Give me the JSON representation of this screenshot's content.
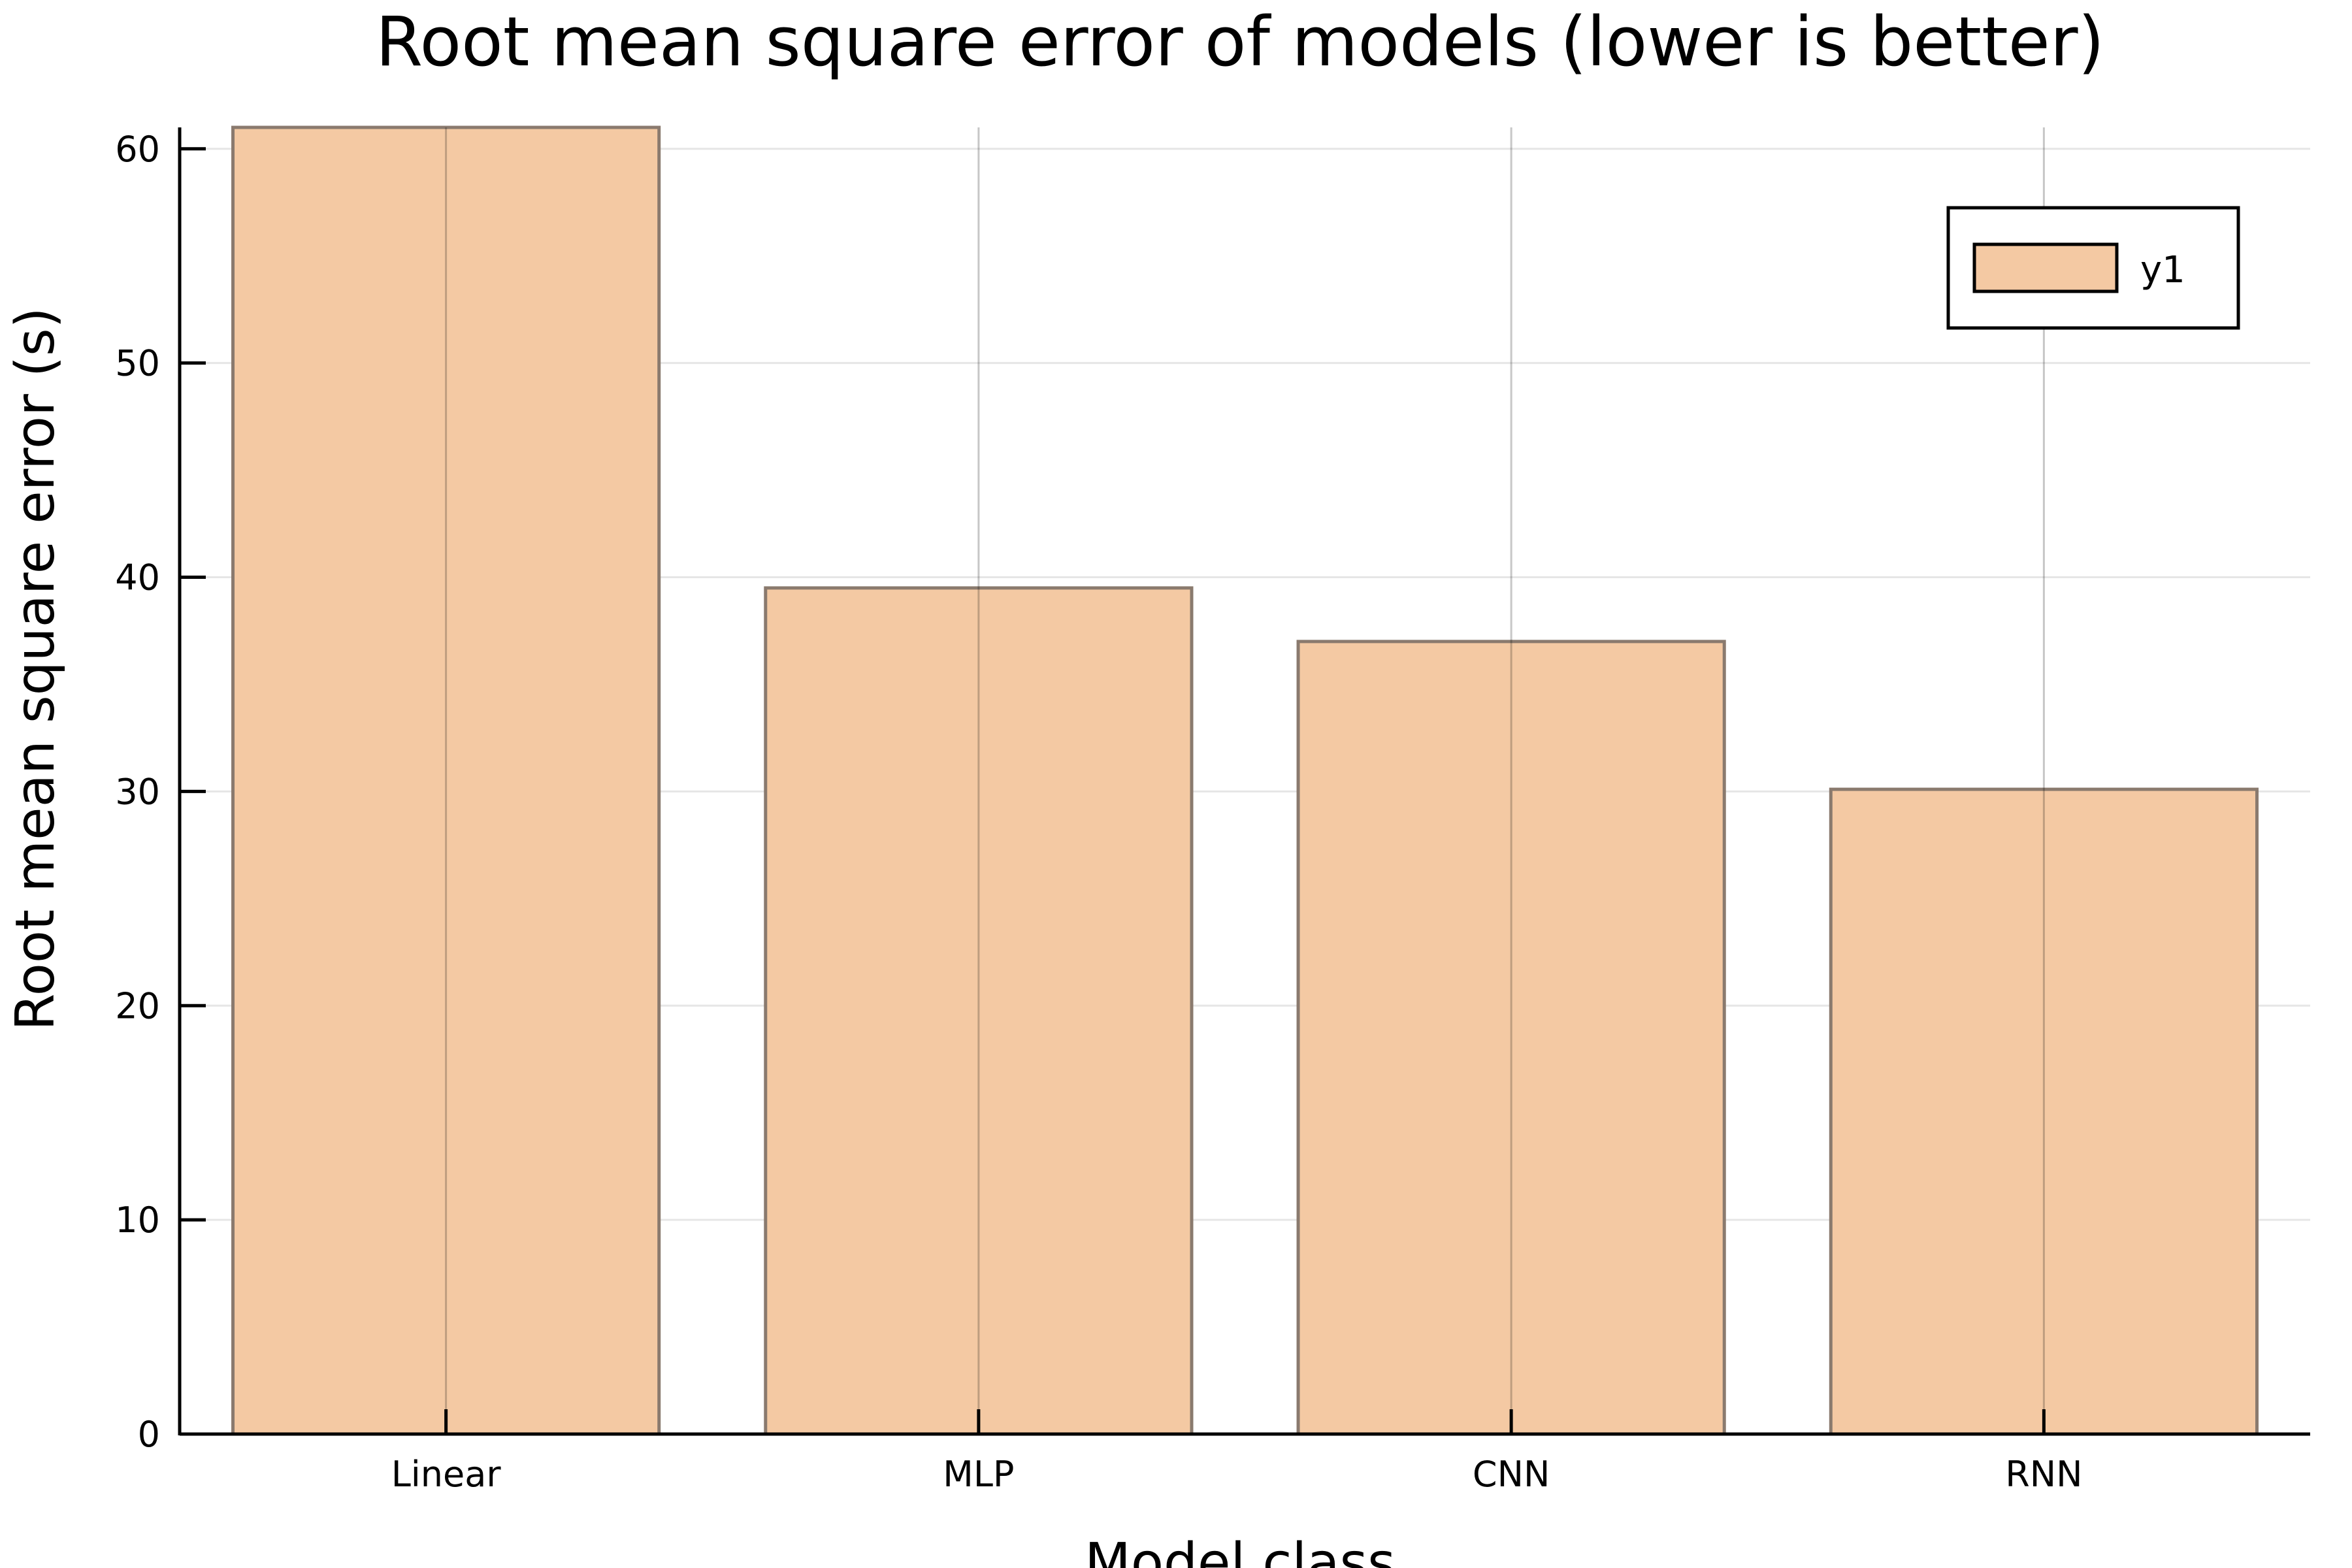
{
  "chart_data": {
    "type": "bar",
    "title": "Root mean square error of models (lower is better)",
    "xlabel": "Model class",
    "ylabel": "Root mean square error (s)",
    "categories": [
      "Linear",
      "MLP",
      "CNN",
      "RNN"
    ],
    "series": [
      {
        "name": "y1",
        "values": [
          61,
          39.5,
          37,
          30.1
        ]
      }
    ],
    "ylim": [
      0,
      61
    ],
    "yticks": [
      0,
      10,
      20,
      30,
      40,
      50,
      60
    ],
    "grid": true,
    "legend": "top-right",
    "colors": {
      "bar_fill": "#f4c9a3",
      "bar_stroke": "#8a7a6e",
      "grid": "#e6e6e6",
      "axis": "#000000"
    }
  }
}
